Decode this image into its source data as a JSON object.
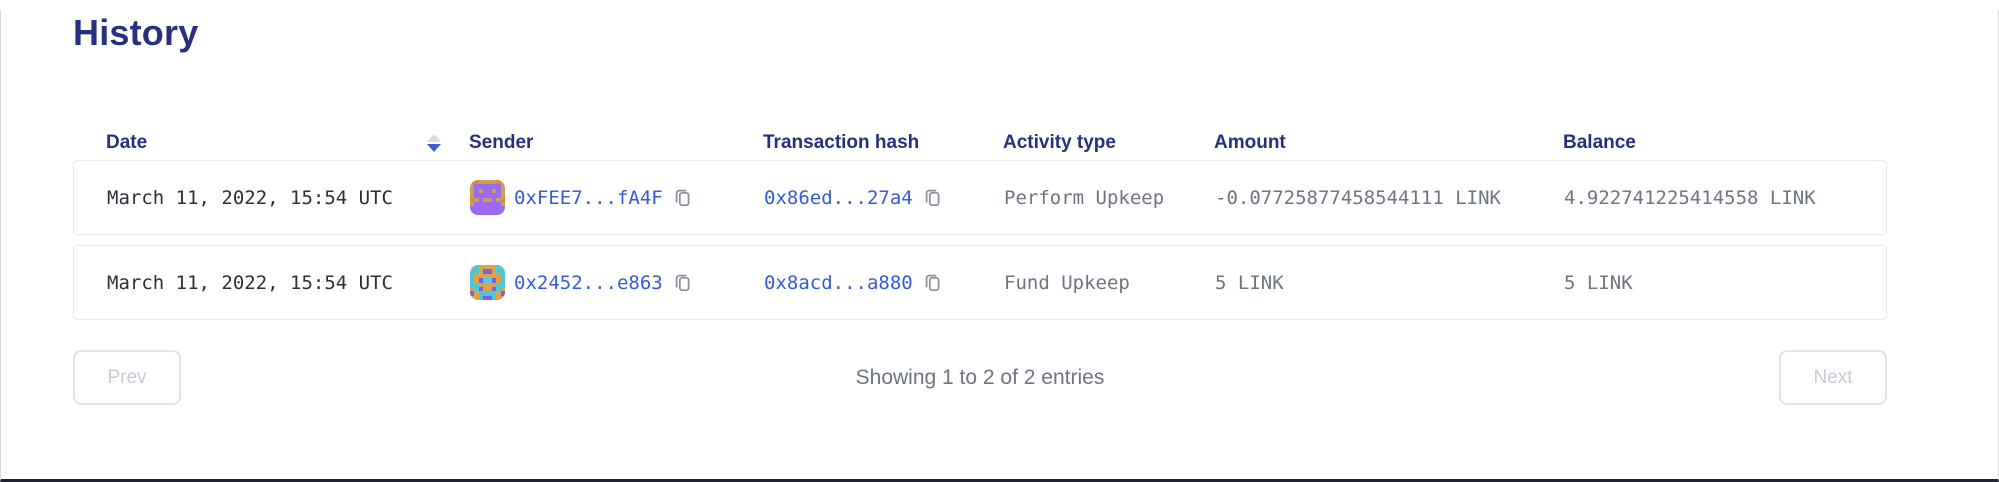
{
  "page": {
    "title": "History"
  },
  "colors": {
    "navy": "#26307e",
    "link": "#375bd2",
    "date-text": "#2c2f38",
    "gray-text": "#6d7483",
    "card-border": "#e7e9f0",
    "sort-active": "#3b5bd7",
    "sort-inactive": "#d9dce3",
    "icon-gray": "#878e9c",
    "btn-border": "#e1e4eb",
    "btn-text": "#c6cbd6"
  },
  "icons": {
    "sort": "sort-arrows-icon",
    "copy": "copy-icon"
  },
  "table": {
    "columns": {
      "date": {
        "label": "Date",
        "sortable": true,
        "sort_direction": "desc"
      },
      "sender": {
        "label": "Sender"
      },
      "tx_hash": {
        "label": "Transaction hash"
      },
      "activity_type": {
        "label": "Activity type"
      },
      "amount": {
        "label": "Amount"
      },
      "balance": {
        "label": "Balance"
      }
    },
    "rows": [
      {
        "date": "March 11, 2022, 15:54 UTC",
        "sender": "0xFEE7...fA4F",
        "tx_hash": "0x86ed...27a4",
        "activity_type": "Perform Upkeep",
        "amount": "-0.07725877458544111 LINK",
        "balance": "4.922741225414558 LINK",
        "avatar": {
          "palette": [
            "#cda24d",
            "#9b6cf2",
            "#df8a3a"
          ],
          "grid": [
            [
              0,
              2,
              0,
              0,
              0,
              0,
              2,
              0
            ],
            [
              0,
              1,
              1,
              1,
              1,
              1,
              1,
              0
            ],
            [
              0,
              1,
              0,
              1,
              1,
              0,
              1,
              0
            ],
            [
              0,
              1,
              1,
              1,
              1,
              1,
              1,
              0
            ],
            [
              2,
              0,
              1,
              0,
              0,
              1,
              0,
              2
            ],
            [
              0,
              1,
              1,
              1,
              1,
              1,
              1,
              0
            ],
            [
              1,
              1,
              1,
              1,
              1,
              1,
              1,
              1
            ],
            [
              1,
              1,
              1,
              1,
              1,
              1,
              1,
              1
            ]
          ]
        }
      },
      {
        "date": "March 11, 2022, 15:54 UTC",
        "sender": "0x2452...e863",
        "tx_hash": "0x8acd...a880",
        "activity_type": "Fund Upkeep",
        "amount": "5 LINK",
        "balance": "5 LINK",
        "avatar": {
          "palette": [
            "#dfa24c",
            "#4cc8dc",
            "#7e5ce0"
          ],
          "grid": [
            [
              0,
              1,
              0,
              0,
              0,
              0,
              1,
              0
            ],
            [
              1,
              1,
              0,
              2,
              2,
              0,
              1,
              1
            ],
            [
              1,
              0,
              0,
              0,
              0,
              0,
              0,
              1
            ],
            [
              1,
              0,
              2,
              1,
              1,
              2,
              0,
              1
            ],
            [
              1,
              1,
              0,
              0,
              0,
              0,
              1,
              1
            ],
            [
              0,
              1,
              2,
              0,
              0,
              2,
              1,
              0
            ],
            [
              2,
              0,
              1,
              1,
              1,
              1,
              0,
              2
            ],
            [
              0,
              0,
              1,
              2,
              2,
              1,
              0,
              0
            ]
          ]
        }
      }
    ]
  },
  "pagination": {
    "prev_label": "Prev",
    "next_label": "Next",
    "status": "Showing 1 to 2 of 2 entries"
  }
}
